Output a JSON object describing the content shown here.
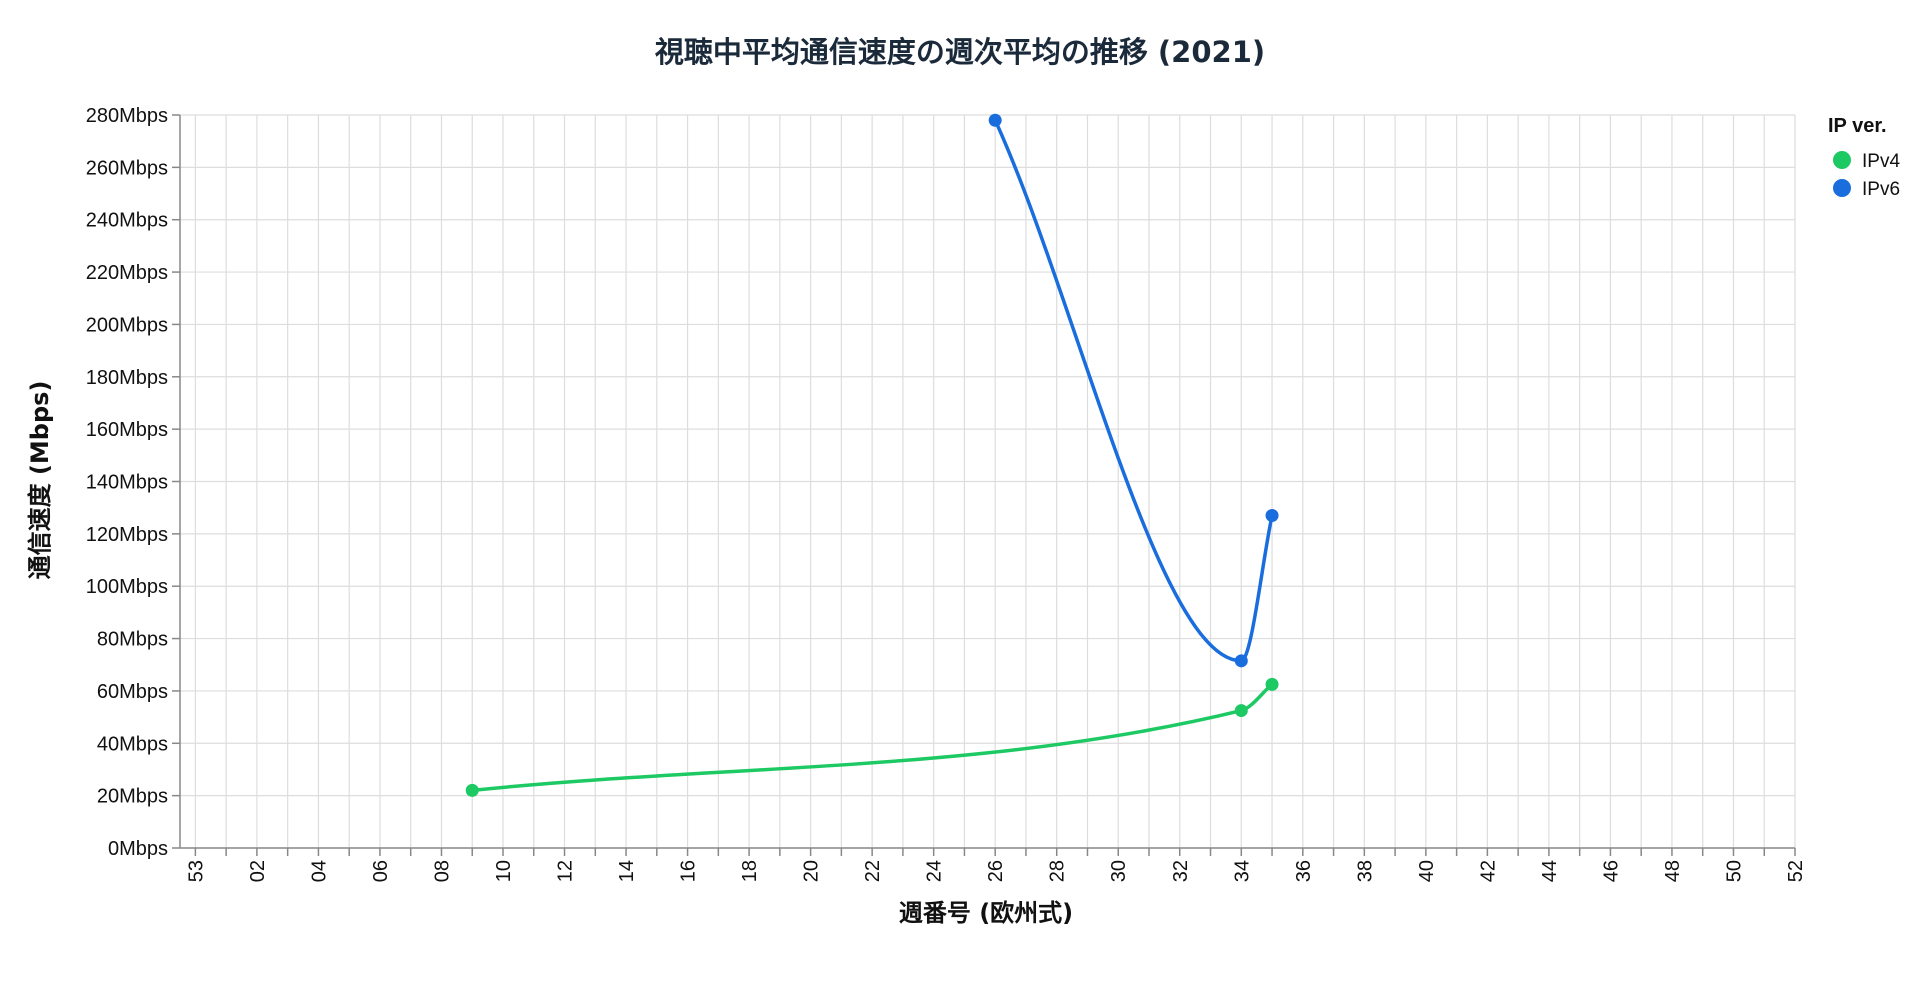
{
  "chart_data": {
    "type": "line",
    "title": "視聴中平均通信速度の週次平均の推移 (2021)",
    "xlabel": "週番号 (欧州式)",
    "ylabel": "通信速度 (Mbps)",
    "x_domain": [
      53,
      52
    ],
    "x_ticks": [
      "53",
      "02",
      "04",
      "06",
      "08",
      "10",
      "12",
      "14",
      "16",
      "18",
      "20",
      "22",
      "24",
      "26",
      "28",
      "30",
      "32",
      "34",
      "36",
      "38",
      "40",
      "42",
      "44",
      "46",
      "48",
      "50",
      "52"
    ],
    "ylim": [
      0,
      280
    ],
    "y_ticks": [
      "0Mbps",
      "20Mbps",
      "40Mbps",
      "60Mbps",
      "80Mbps",
      "100Mbps",
      "120Mbps",
      "140Mbps",
      "160Mbps",
      "180Mbps",
      "200Mbps",
      "220Mbps",
      "240Mbps",
      "260Mbps",
      "280Mbps"
    ],
    "grid": true,
    "interpolation": "monotone",
    "legend": {
      "title": "IP ver.",
      "position": "top-right"
    },
    "series": [
      {
        "name": "IPv4",
        "color": "#1dc963",
        "x": [
          9,
          34,
          35
        ],
        "values": [
          22,
          52.5,
          62.5
        ]
      },
      {
        "name": "IPv6",
        "color": "#1a6ddd",
        "x": [
          26,
          34,
          35
        ],
        "values": [
          278,
          71.5,
          127
        ]
      }
    ]
  }
}
